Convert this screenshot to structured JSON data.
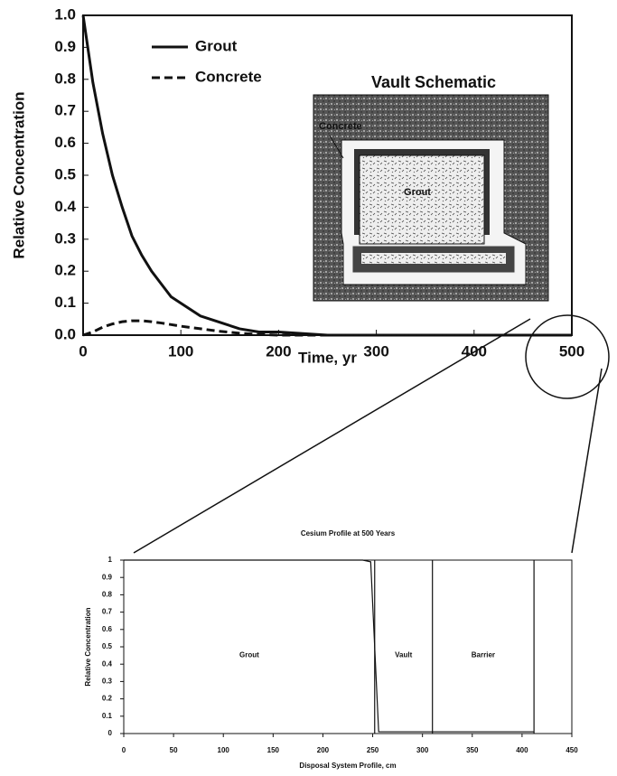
{
  "chart_data": [
    {
      "type": "line",
      "xlabel": "Time, yr",
      "ylabel": "Relative Concentration",
      "x": [
        0,
        10,
        20,
        30,
        40,
        50,
        60,
        70,
        80,
        90,
        100,
        120,
        140,
        160,
        180,
        200,
        250,
        300,
        400,
        500
      ],
      "series": [
        {
          "name": "Grout",
          "color": "#111111",
          "dashed": false,
          "values": [
            1.0,
            0.79,
            0.63,
            0.5,
            0.4,
            0.31,
            0.25,
            0.2,
            0.16,
            0.12,
            0.1,
            0.06,
            0.04,
            0.02,
            0.01,
            0.01,
            0,
            0,
            0,
            0
          ]
        },
        {
          "name": "Concrete",
          "color": "#111111",
          "dashed": true,
          "values": [
            0,
            0.01,
            0.025,
            0.035,
            0.042,
            0.045,
            0.045,
            0.042,
            0.038,
            0.033,
            0.028,
            0.02,
            0.012,
            0.006,
            0.002,
            0,
            0,
            0,
            0,
            0
          ]
        }
      ],
      "xlim": [
        0,
        500
      ],
      "ylim": [
        0,
        1
      ],
      "xticks": [
        0,
        100,
        200,
        300,
        400,
        500
      ],
      "yticks": [
        {
          "value": 0,
          "label": "0.0"
        },
        0.1,
        0.2,
        0.3,
        0.4,
        0.5,
        0.6,
        0.7,
        0.8,
        0.9,
        {
          "value": 1,
          "label": "1.0"
        }
      ],
      "legend": "upper left",
      "inset": {
        "title": "Vault Schematic",
        "labels": [
          "Concrete",
          "Grout"
        ]
      }
    },
    {
      "type": "line",
      "title": "Cesium Profile at 500 Years",
      "xlabel": "Disposal System Profile, cm",
      "ylabel": "Relative Concentration",
      "x": [
        0,
        100,
        200,
        240,
        248,
        252,
        256,
        300,
        310,
        400,
        412
      ],
      "series": [
        {
          "color": "#111111",
          "dashed": false,
          "values": [
            1,
            1,
            1,
            1,
            0.99,
            0.5,
            0.01,
            0.01,
            0.01,
            0.01,
            0.01
          ]
        }
      ],
      "xlim": [
        0,
        450
      ],
      "ylim": [
        0,
        1
      ],
      "xticks": [
        0,
        50,
        100,
        150,
        200,
        250,
        300,
        350,
        400,
        450
      ],
      "yticks": [
        0,
        0.1,
        0.2,
        0.3,
        0.4,
        0.5,
        0.6,
        0.7,
        0.8,
        0.9,
        1
      ],
      "boundaries": [
        252,
        310,
        412
      ],
      "regions": [
        "Grout",
        "Vault",
        "Barrier"
      ]
    }
  ]
}
